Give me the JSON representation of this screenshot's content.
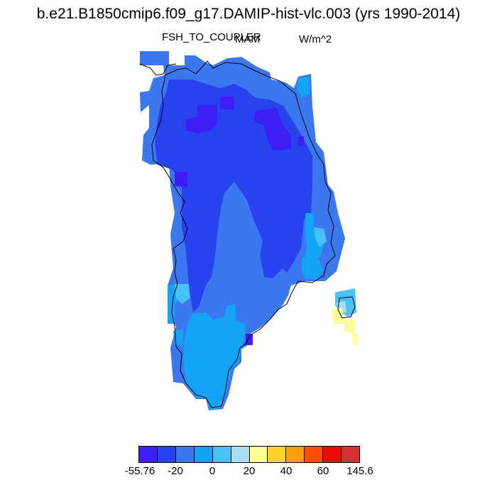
{
  "title": "b.e21.B1850cmip6.f09_g17.DAMIP-hist-vlc.003 (yrs 1990-2014)",
  "variable": "FSH_TO_COUPLER",
  "season": "MAM",
  "units": "W/m^2",
  "colors": {
    "c0": "#3d1ef5",
    "c1": "#2742ee",
    "c2": "#3b78ef",
    "c3": "#14a3f6",
    "c4": "#4ac1f4",
    "c5": "#a8dcf1",
    "c6": "#fffd98",
    "c7": "#fdd22c",
    "c8": "#fe9d0d",
    "c9": "#fd4e04",
    "c10": "#ec0a0a",
    "c11": "#d43134"
  },
  "colorbar": {
    "tick_labels": [
      "-55.76",
      "-20",
      "0",
      "20",
      "40",
      "60",
      "145.6"
    ]
  }
}
